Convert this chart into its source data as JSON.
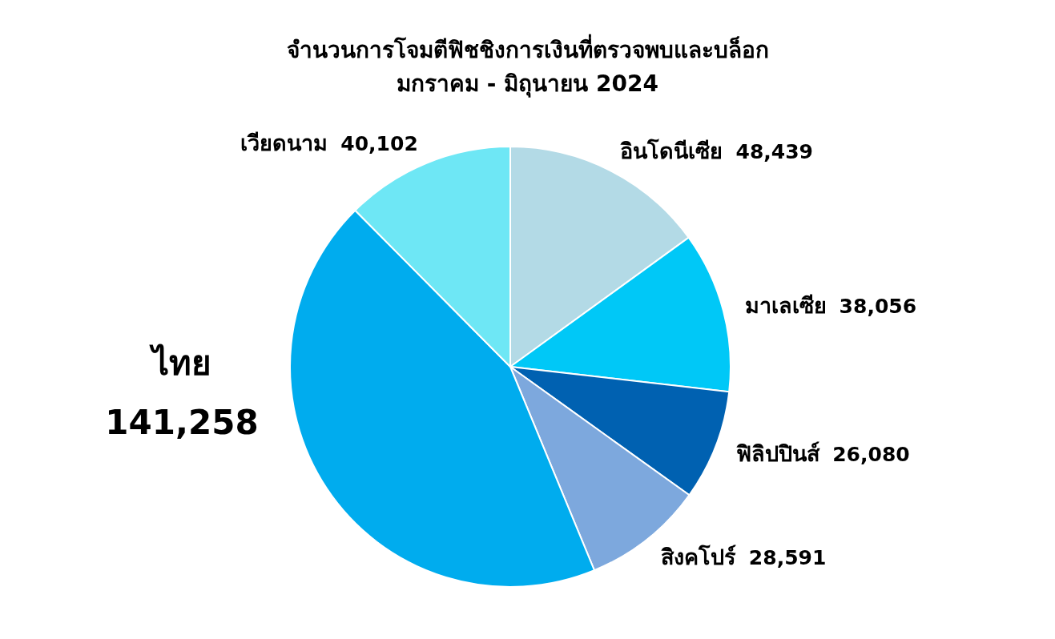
{
  "chart_data": {
    "type": "pie",
    "title": "จำนวนการโจมตีฟิชชิงการเงินที่ตรวจพบและบล็อก",
    "subtitle": "มกราคม - มิถุนายน 2024",
    "categories": [
      "อินโดนีเซีย",
      "มาเลเซีย",
      "ฟิลิปปินส์",
      "สิงคโปร์",
      "ไทย",
      "เวียดนาม"
    ],
    "values": [
      48439,
      38056,
      26080,
      28591,
      141258,
      40102
    ],
    "value_labels": [
      "48,439",
      "38,056",
      "26,080",
      "28,591",
      "141,258",
      "40,102"
    ],
    "colors": [
      "#b3dae6",
      "#00c8f7",
      "#0061b1",
      "#7da8dd",
      "#00acee",
      "#6ee7f5"
    ]
  }
}
